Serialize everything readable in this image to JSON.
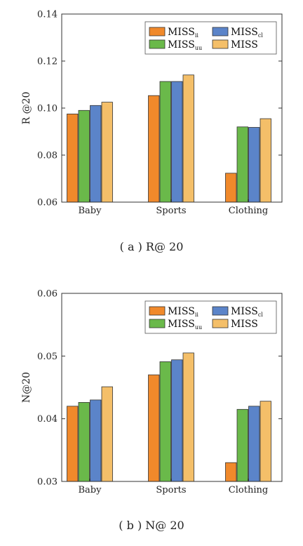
{
  "colors": {
    "MISS_ii": "#f0892b",
    "MISS_uu": "#6ab94a",
    "MISS_cl": "#5b84c9",
    "MISS": "#f4bf69",
    "edge": "#333333"
  },
  "legend": [
    {
      "base": "MISS",
      "sub": "ii",
      "color_key": "MISS_ii"
    },
    {
      "base": "MISS",
      "sub": "cl",
      "color_key": "MISS_cl"
    },
    {
      "base": "MISS",
      "sub": "uu",
      "color_key": "MISS_uu"
    },
    {
      "base": "MISS",
      "sub": "",
      "color_key": "MISS"
    }
  ],
  "captions": [
    "( a ) R@ 20",
    "( b ) N@ 20"
  ],
  "chart_data": [
    {
      "type": "bar",
      "ylabel": "R @20",
      "categories": [
        "Baby",
        "Sports",
        "Clothing"
      ],
      "ylim": [
        0.06,
        0.14
      ],
      "yticks": [
        "0.06",
        "0.08",
        "0.10",
        "0.12",
        "0.14"
      ],
      "legend_position": "top-right",
      "grid": false,
      "series": [
        {
          "name": "MISSii",
          "color_key": "MISS_ii",
          "values": [
            0.0975,
            0.1053,
            0.0723
          ]
        },
        {
          "name": "MISSuu",
          "color_key": "MISS_uu",
          "values": [
            0.099,
            0.1113,
            0.092
          ]
        },
        {
          "name": "MISScl",
          "color_key": "MISS_cl",
          "values": [
            0.1011,
            0.1113,
            0.0918
          ]
        },
        {
          "name": "MISS",
          "color_key": "MISS",
          "values": [
            0.1025,
            0.1141,
            0.0955
          ]
        }
      ]
    },
    {
      "type": "bar",
      "ylabel": "N@20",
      "categories": [
        "Baby",
        "Sports",
        "Clothing"
      ],
      "ylim": [
        0.03,
        0.06
      ],
      "yticks": [
        "0.03",
        "0.04",
        "0.05",
        "0.06"
      ],
      "legend_position": "top-right",
      "grid": false,
      "series": [
        {
          "name": "MISSii",
          "color_key": "MISS_ii",
          "values": [
            0.042,
            0.047,
            0.033
          ]
        },
        {
          "name": "MISSuu",
          "color_key": "MISS_uu",
          "values": [
            0.0426,
            0.0491,
            0.0415
          ]
        },
        {
          "name": "MISScl",
          "color_key": "MISS_cl",
          "values": [
            0.043,
            0.0494,
            0.042
          ]
        },
        {
          "name": "MISS",
          "color_key": "MISS",
          "values": [
            0.0451,
            0.0505,
            0.0428
          ]
        }
      ]
    }
  ]
}
